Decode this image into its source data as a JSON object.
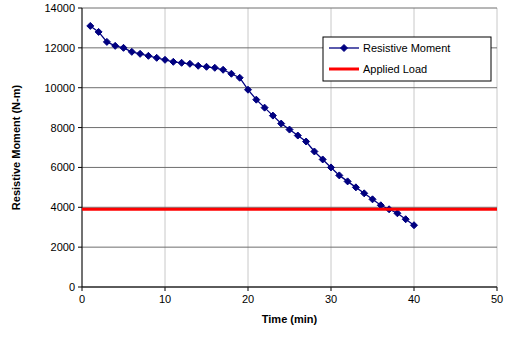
{
  "chart_data": {
    "type": "line",
    "x_label": "Time (min)",
    "y_label": "Resistive Moment (N-m)",
    "x": [
      1,
      2,
      3,
      4,
      5,
      6,
      7,
      8,
      9,
      10,
      11,
      12,
      13,
      14,
      15,
      16,
      17,
      18,
      19,
      20,
      21,
      22,
      23,
      24,
      25,
      26,
      27,
      28,
      29,
      30,
      31,
      32,
      33,
      34,
      35,
      36,
      37,
      38,
      39,
      40
    ],
    "series": [
      {
        "name": "Resistive Moment",
        "color": "#000080",
        "marker": "diamond",
        "line_style": "solid",
        "values": [
          13100,
          12800,
          12300,
          12100,
          12000,
          11800,
          11700,
          11600,
          11500,
          11400,
          11300,
          11250,
          11200,
          11100,
          11050,
          11000,
          10900,
          10700,
          10500,
          9900,
          9400,
          9000,
          8600,
          8200,
          7900,
          7600,
          7300,
          6800,
          6400,
          6000,
          5600,
          5300,
          5000,
          4700,
          4400,
          4100,
          3900,
          3700,
          3400,
          3100
        ]
      },
      {
        "name": "Applied Load",
        "color": "#ff0000",
        "marker": "none",
        "line_style": "solid",
        "x": [
          0,
          50
        ],
        "values": [
          3900,
          3900
        ]
      }
    ],
    "xlim": [
      0,
      50
    ],
    "xticks": [
      0,
      10,
      20,
      30,
      40,
      50
    ],
    "ylim": [
      0,
      14000
    ],
    "yticks": [
      0,
      2000,
      4000,
      6000,
      8000,
      10000,
      12000,
      14000
    ],
    "grid": true,
    "legend": "upper right"
  }
}
